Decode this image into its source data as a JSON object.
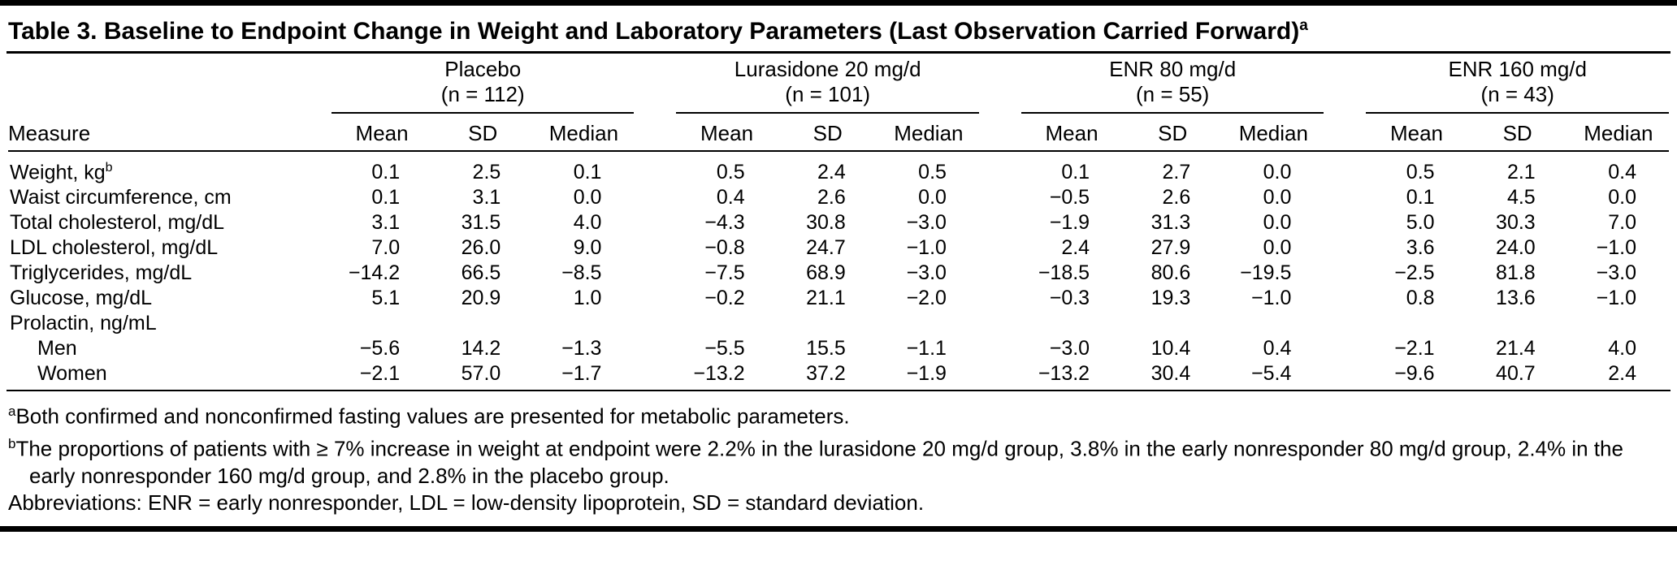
{
  "table": {
    "title": "Table 3. Baseline to Endpoint Change in Weight and Laboratory Parameters (Last Observation Carried Forward)",
    "title_sup": "a",
    "measure_header": "Measure",
    "groups": [
      {
        "name": "Placebo",
        "n": "(n = 112)",
        "subheaders": [
          "Mean",
          "SD",
          "Median"
        ]
      },
      {
        "name": "Lurasidone 20 mg/d",
        "n": "(n = 101)",
        "subheaders": [
          "Mean",
          "SD",
          "Median"
        ]
      },
      {
        "name": "ENR 80 mg/d",
        "n": "(n = 55)",
        "subheaders": [
          "Mean",
          "SD",
          "Median"
        ]
      },
      {
        "name": "ENR 160 mg/d",
        "n": "(n = 43)",
        "subheaders": [
          "Mean",
          "SD",
          "Median"
        ]
      }
    ],
    "rows": [
      {
        "measure": "Weight, kg",
        "sup": "b",
        "indent": false,
        "values": [
          "0.1",
          "2.5",
          "0.1",
          "0.5",
          "2.4",
          "0.5",
          "0.1",
          "2.7",
          "0.0",
          "0.5",
          "2.1",
          "0.4"
        ]
      },
      {
        "measure": "Waist circumference, cm",
        "sup": "",
        "indent": false,
        "values": [
          "0.1",
          "3.1",
          "0.0",
          "0.4",
          "2.6",
          "0.0",
          "−0.5",
          "2.6",
          "0.0",
          "0.1",
          "4.5",
          "0.0"
        ]
      },
      {
        "measure": "Total cholesterol, mg/dL",
        "sup": "",
        "indent": false,
        "values": [
          "3.1",
          "31.5",
          "4.0",
          "−4.3",
          "30.8",
          "−3.0",
          "−1.9",
          "31.3",
          "0.0",
          "5.0",
          "30.3",
          "7.0"
        ]
      },
      {
        "measure": "LDL cholesterol, mg/dL",
        "sup": "",
        "indent": false,
        "values": [
          "7.0",
          "26.0",
          "9.0",
          "−0.8",
          "24.7",
          "−1.0",
          "2.4",
          "27.9",
          "0.0",
          "3.6",
          "24.0",
          "−1.0"
        ]
      },
      {
        "measure": "Triglycerides, mg/dL",
        "sup": "",
        "indent": false,
        "values": [
          "−14.2",
          "66.5",
          "−8.5",
          "−7.5",
          "68.9",
          "−3.0",
          "−18.5",
          "80.6",
          "−19.5",
          "−2.5",
          "81.8",
          "−3.0"
        ]
      },
      {
        "measure": "Glucose, mg/dL",
        "sup": "",
        "indent": false,
        "values": [
          "5.1",
          "20.9",
          "1.0",
          "−0.2",
          "21.1",
          "−2.0",
          "−0.3",
          "19.3",
          "−1.0",
          "0.8",
          "13.6",
          "−1.0"
        ]
      },
      {
        "measure": "Prolactin, ng/mL",
        "sup": "",
        "indent": false,
        "values": []
      },
      {
        "measure": "Men",
        "sup": "",
        "indent": true,
        "values": [
          "−5.6",
          "14.2",
          "−1.3",
          "−5.5",
          "15.5",
          "−1.1",
          "−3.0",
          "10.4",
          "0.4",
          "−2.1",
          "21.4",
          "4.0"
        ]
      },
      {
        "measure": "Women",
        "sup": "",
        "indent": true,
        "values": [
          "−2.1",
          "57.0",
          "−1.7",
          "−13.2",
          "37.2",
          "−1.9",
          "−13.2",
          "30.4",
          "−5.4",
          "−9.6",
          "40.7",
          "2.4"
        ]
      }
    ],
    "footnotes": [
      {
        "sup": "a",
        "text": "Both confirmed and nonconfirmed fasting values are presented for metabolic parameters."
      },
      {
        "sup": "b",
        "text": "The proportions of patients with ≥ 7% increase in weight at endpoint were 2.2% in the lurasidone 20 mg/d group, 3.8% in the early nonresponder 80 mg/d group, 2.4% in the early nonresponder 160 mg/d group, and 2.8% in the placebo group."
      },
      {
        "sup": "",
        "text": "Abbreviations: ENR = early nonresponder, LDL = low-density lipoprotein, SD = standard deviation."
      }
    ]
  }
}
